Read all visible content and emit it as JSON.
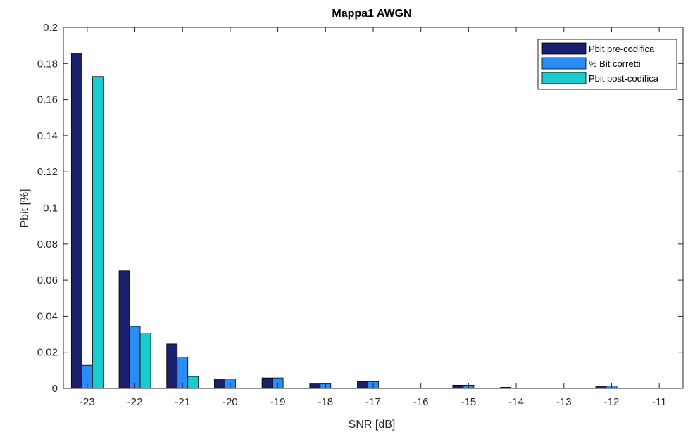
{
  "chart_data": {
    "type": "bar",
    "title": "Mappa1 AWGN",
    "xlabel": "SNR [dB]",
    "ylabel": "Pbit [%]",
    "categories": [
      "-23",
      "-22",
      "-21",
      "-20",
      "-19",
      "-18",
      "-17",
      "-16",
      "-15",
      "-14",
      "-13",
      "-12",
      "-11"
    ],
    "ylim": [
      0,
      0.2
    ],
    "yticks": [
      "0",
      "0.02",
      "0.04",
      "0.06",
      "0.08",
      "0.1",
      "0.12",
      "0.14",
      "0.16",
      "0.18",
      "0.2"
    ],
    "grid": false,
    "legend_position": "top-right",
    "series": [
      {
        "name": "Pbit pre-codifica",
        "color": "#1a1f6e",
        "values": [
          0.1858,
          0.0652,
          0.0246,
          0.0052,
          0.0058,
          0.0025,
          0.0038,
          0,
          0.0018,
          0.0006,
          0,
          0.0014,
          0
        ]
      },
      {
        "name": "% Bit corretti",
        "color": "#2b8cf5",
        "values": [
          0.0128,
          0.0343,
          0.0174,
          0.0052,
          0.0058,
          0.0025,
          0.0038,
          0,
          0.0018,
          0.0002,
          0,
          0.0014,
          0
        ]
      },
      {
        "name": "Pbit post-codifica",
        "color": "#1ccccc",
        "values": [
          0.1728,
          0.0306,
          0.0066,
          0,
          0,
          0,
          0,
          0,
          0,
          0,
          0,
          0,
          0
        ]
      }
    ]
  }
}
